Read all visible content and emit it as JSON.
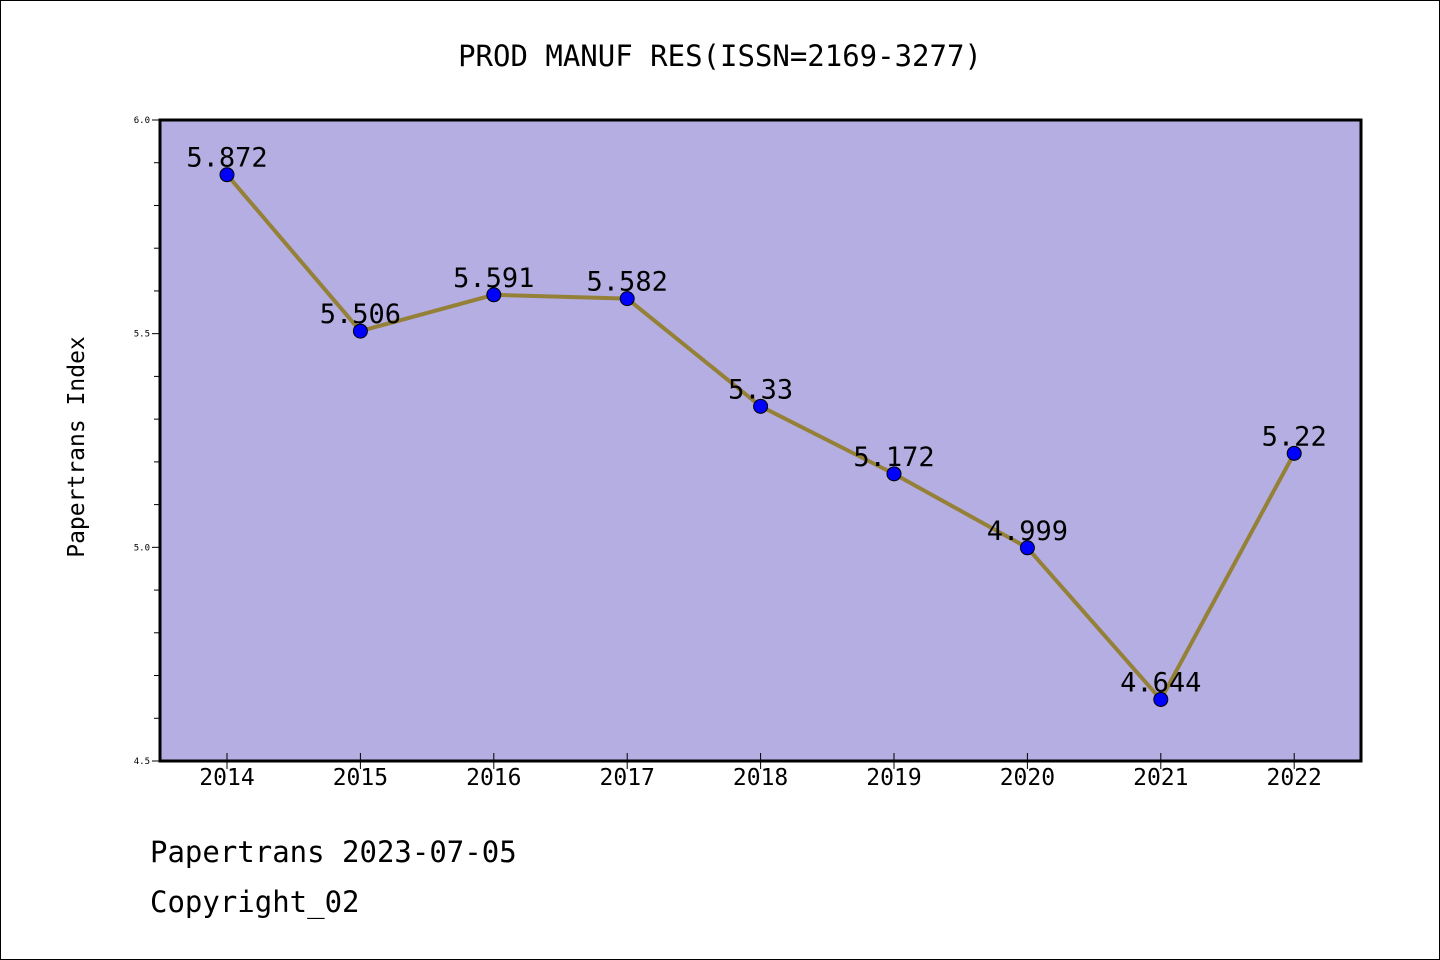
{
  "chart_data": {
    "type": "line",
    "title": "PROD MANUF RES(ISSN=2169-3277)",
    "xlabel": "",
    "ylabel": "Papertrans Index",
    "x": [
      "2014",
      "2015",
      "2016",
      "2017",
      "2018",
      "2019",
      "2020",
      "2021",
      "2022"
    ],
    "y": [
      5.872,
      5.506,
      5.591,
      5.582,
      5.33,
      5.172,
      4.999,
      4.644,
      5.22
    ],
    "data_labels": [
      "5.872",
      "5.506",
      "5.591",
      "5.582",
      "5.33",
      "5.172",
      "4.999",
      "4.644",
      "5.22"
    ],
    "ylim": [
      4.5,
      6.0
    ],
    "yticks": [
      "4.5",
      "5.0",
      "5.5",
      "6.0"
    ],
    "grid": false,
    "colors": {
      "plot_background": "#b5aee2",
      "line": "#948137",
      "marker": "#0000ff"
    }
  },
  "footer": {
    "line1": "Papertrans 2023-07-05",
    "line2": "Copyright_02"
  }
}
